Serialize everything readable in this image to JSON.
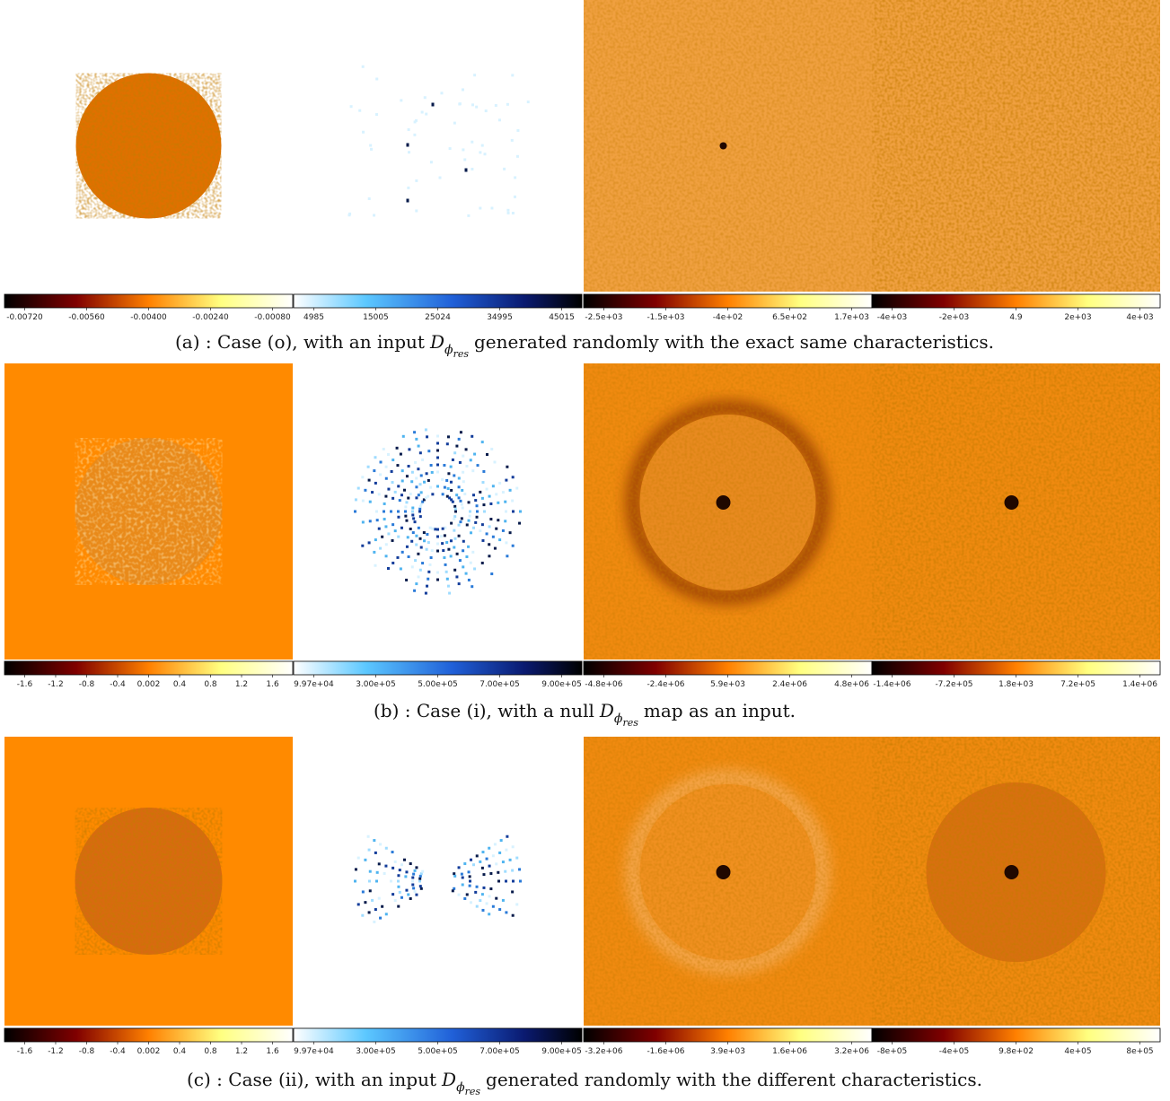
{
  "rows": [
    {
      "colorbars": [
        [
          "-0.00720",
          "-0.00560",
          "-0.00400",
          "-0.00240",
          "-0.00080"
        ],
        [
          "4985",
          "15005",
          "25024",
          "34995",
          "45015"
        ],
        [
          "-2.5e+03",
          "-1.5e+03",
          "-4e+02",
          "6.5e+02",
          "1.7e+03"
        ],
        [
          "-4e+03",
          "-2e+03",
          "4.9",
          "2e+03",
          "4e+03"
        ]
      ],
      "caption": {
        "label": "(a) : Case (o), with an input",
        "symbol": "D",
        "sub": "ϕ",
        "subsub": "res",
        "rest": "generated randomly with the exact same characteristics."
      }
    },
    {
      "colorbars": [
        [
          "-1.6",
          "-1.2",
          "-0.8",
          "-0.4",
          "0.002",
          "0.4",
          "0.8",
          "1.2",
          "1.6"
        ],
        [
          "9.97e+04",
          "3.00e+05",
          "5.00e+05",
          "7.00e+05",
          "9.00e+05"
        ],
        [
          "-4.8e+06",
          "-2.4e+06",
          "5.9e+03",
          "2.4e+06",
          "4.8e+06"
        ],
        [
          "-1.4e+06",
          "-7.2e+05",
          "1.8e+03",
          "7.2e+05",
          "1.4e+06"
        ]
      ],
      "caption": {
        "label": "(b) : Case (i), with a null",
        "symbol": "D",
        "sub": "ϕ",
        "subsub": "res",
        "rest": "map as an input."
      }
    },
    {
      "colorbars": [
        [
          "-1.6",
          "-1.2",
          "-0.8",
          "-0.4",
          "0.002",
          "0.4",
          "0.8",
          "1.2",
          "1.6"
        ],
        [
          "9.97e+04",
          "3.00e+05",
          "5.00e+05",
          "7.00e+05",
          "9.00e+05"
        ],
        [
          "-3.2e+06",
          "-1.6e+06",
          "3.9e+03",
          "1.6e+06",
          "3.2e+06"
        ],
        [
          "-8e+05",
          "-4e+05",
          "9.8e+02",
          "4e+05",
          "8e+05"
        ]
      ],
      "caption": {
        "label": "(c) : Case (ii), with an input",
        "symbol": "D",
        "sub": "ϕ",
        "subsub": "res",
        "rest": "generated randomly with the different characteristics."
      }
    }
  ]
}
